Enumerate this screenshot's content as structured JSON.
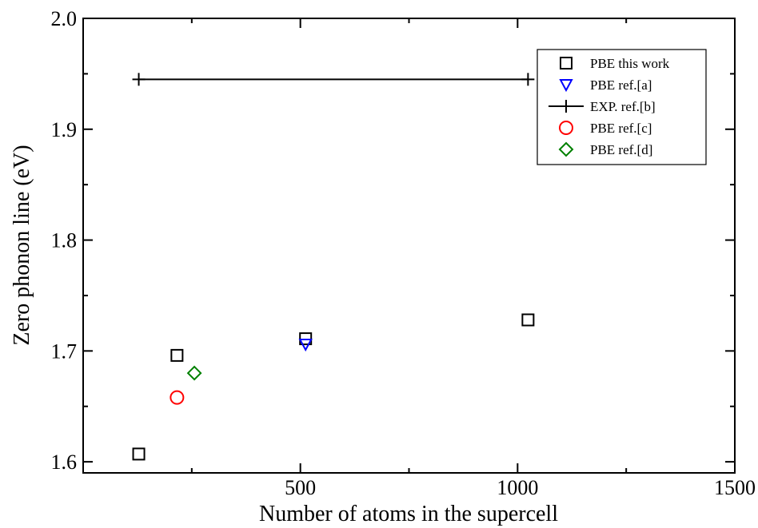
{
  "chart_data": {
    "type": "scatter",
    "title": "",
    "xlabel": "Number of atoms in the supercell",
    "ylabel": "Zero phonon line (eV)",
    "xlim": [
      0,
      1500
    ],
    "ylim": [
      1.59,
      2.0
    ],
    "x_ticks": [
      500,
      1000,
      1500
    ],
    "y_ticks": [
      1.6,
      1.7,
      1.8,
      1.9,
      2.0
    ],
    "x_tick_labels": [
      "500",
      "1000",
      "1500"
    ],
    "y_tick_labels": [
      "1.6",
      "1.7",
      "1.8",
      "1.9",
      "2.0"
    ],
    "grid": false,
    "legend_position": "top-right",
    "series": [
      {
        "name": "PBE this work",
        "marker": "square",
        "color": "#000000",
        "points": [
          [
            128,
            1.607
          ],
          [
            216,
            1.696
          ],
          [
            512,
            1.711
          ],
          [
            1024,
            1.728
          ]
        ]
      },
      {
        "name": "PBE ref.[a]",
        "marker": "triangle-down",
        "color": "#0000ff",
        "points": [
          [
            512,
            1.706
          ]
        ]
      },
      {
        "name": "EXP. ref.[b]",
        "marker": "plus-line",
        "color": "#000000",
        "points": [
          [
            128,
            1.945
          ],
          [
            1024,
            1.945
          ]
        ]
      },
      {
        "name": "PBE ref.[c]",
        "marker": "circle",
        "color": "#ff0000",
        "points": [
          [
            216,
            1.658
          ]
        ]
      },
      {
        "name": "PBE ref.[d]",
        "marker": "diamond",
        "color": "#008000",
        "points": [
          [
            256,
            1.68
          ]
        ]
      }
    ]
  }
}
